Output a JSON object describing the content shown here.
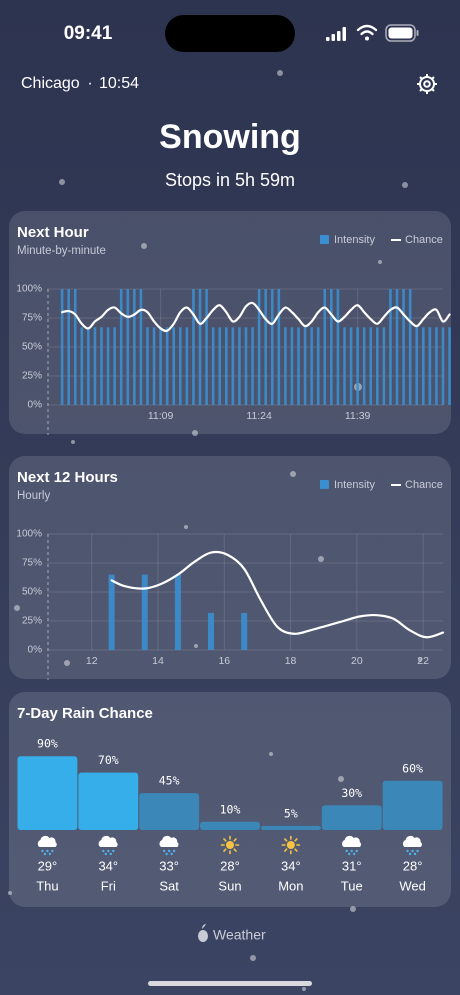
{
  "status_bar": {
    "time": "09:41"
  },
  "header": {
    "location": "Chicago",
    "separator": "·",
    "time": "10:54",
    "condition": "Snowing",
    "subtitle": "Stops in 5h 59m"
  },
  "chart_data": [
    {
      "type": "bar_line",
      "title": "Next Hour",
      "subtitle": "Minute-by-minute",
      "series": [
        {
          "name": "Intensity",
          "color": "#3a8fd0",
          "x": [
            0,
            1,
            2,
            3,
            4,
            5,
            6,
            7,
            8,
            9,
            10,
            11,
            12,
            13,
            14,
            15,
            16,
            17,
            18,
            19,
            20,
            21,
            22,
            23,
            24,
            25,
            26,
            27,
            28,
            29,
            30,
            31,
            32,
            33,
            34,
            35,
            36,
            37,
            38,
            39,
            40,
            41,
            42,
            43,
            44,
            45,
            46,
            47,
            48,
            49,
            50,
            51,
            52,
            53,
            54,
            55,
            56,
            57,
            58,
            59
          ],
          "values": [
            100,
            100,
            100,
            67,
            67,
            67,
            67,
            67,
            67,
            100,
            100,
            100,
            100,
            67,
            67,
            67,
            67,
            67,
            67,
            67,
            100,
            100,
            100,
            67,
            67,
            67,
            67,
            67,
            67,
            67,
            100,
            100,
            100,
            100,
            67,
            67,
            67,
            67,
            67,
            67,
            100,
            100,
            100,
            67,
            67,
            67,
            67,
            67,
            67,
            67,
            100,
            100,
            100,
            100,
            67,
            67,
            67,
            67,
            67,
            67
          ]
        },
        {
          "name": "Chance",
          "color": "#ffffff",
          "x": [
            0,
            1,
            2,
            3,
            4,
            5,
            6,
            7,
            8,
            9,
            10,
            11,
            12,
            13,
            14,
            15,
            16,
            17,
            18,
            19,
            20,
            21,
            22,
            23,
            24,
            25,
            26,
            27,
            28,
            29,
            30,
            31,
            32,
            33,
            34,
            35,
            36,
            37,
            38,
            39,
            40,
            41,
            42,
            43,
            44,
            45,
            46,
            47,
            48,
            49,
            50,
            51,
            52,
            53,
            54,
            55,
            56,
            57,
            58,
            59
          ],
          "values": [
            80,
            81,
            78,
            70,
            66,
            72,
            76,
            82,
            84,
            79,
            76,
            78,
            82,
            80,
            72,
            66,
            64,
            70,
            80,
            84,
            78,
            70,
            75,
            82,
            86,
            80,
            72,
            76,
            85,
            88,
            82,
            74,
            70,
            78,
            84,
            80,
            74,
            68,
            72,
            80,
            84,
            78,
            72,
            76,
            82,
            86,
            80,
            74,
            70,
            76,
            82,
            84,
            78,
            72,
            68,
            74,
            80,
            82,
            72,
            78
          ]
        }
      ],
      "xlim": [
        -2.3,
        58
      ],
      "xticks": [
        {
          "value": 15,
          "label": "11:09"
        },
        {
          "value": 30,
          "label": "11:24"
        },
        {
          "value": 45,
          "label": "11:39"
        }
      ],
      "ylim": [
        0,
        100
      ],
      "yticks": [
        {
          "value": 0,
          "label": "0%"
        },
        {
          "value": 25,
          "label": "25%"
        },
        {
          "value": 50,
          "label": "50%"
        },
        {
          "value": 75,
          "label": "75%"
        },
        {
          "value": 100,
          "label": "100%"
        }
      ],
      "grid": true
    },
    {
      "type": "bar_line",
      "title": "Next 12 Hours",
      "subtitle": "Hourly",
      "series": [
        {
          "name": "Intensity",
          "color": "#3a8fd0",
          "x": [
            12.6,
            13.6,
            14.6,
            15.6,
            16.6
          ],
          "values": [
            65,
            65,
            65,
            32,
            32
          ]
        },
        {
          "name": "Chance",
          "color": "#ffffff",
          "x": [
            12.6,
            13,
            13.6,
            14.1,
            14.6,
            15.1,
            15.6,
            16.1,
            16.6,
            17.1,
            17.6,
            18.1,
            18.6,
            19.1,
            19.6,
            20.1,
            20.6,
            21.1,
            21.6,
            22.1,
            22.6
          ],
          "values": [
            60,
            55,
            53,
            57,
            65,
            76,
            84,
            82,
            70,
            43,
            20,
            14,
            17,
            21,
            25,
            29,
            30,
            27,
            17,
            11,
            15
          ]
        }
      ],
      "xlim": [
        10.65,
        22.6
      ],
      "xticks": [
        12,
        14,
        16,
        18,
        20,
        22
      ],
      "ylim": [
        0,
        100
      ],
      "yticks": [
        {
          "value": 0,
          "label": "0%"
        },
        {
          "value": 25,
          "label": "25%"
        },
        {
          "value": 50,
          "label": "50%"
        },
        {
          "value": 75,
          "label": "75%"
        },
        {
          "value": 100,
          "label": "100%"
        }
      ],
      "grid": true
    },
    {
      "type": "bar",
      "title": "7-Day Rain Chance",
      "categories": [
        "Thu",
        "Fri",
        "Sat",
        "Sun",
        "Mon",
        "Tue",
        "Wed"
      ],
      "values": [
        90,
        70,
        45,
        10,
        5,
        30,
        60
      ],
      "value_labels": [
        "90%",
        "70%",
        "45%",
        "10%",
        "5%",
        "30%",
        "60%"
      ],
      "temps": [
        "29°",
        "34°",
        "33°",
        "28°",
        "34°",
        "31°",
        "28°"
      ],
      "conditions": [
        "snow",
        "snow",
        "snow",
        "sun",
        "sun",
        "snow",
        "snow"
      ],
      "colors": [
        "#35aee9",
        "#35aee9",
        "#3b87b8",
        "#3b87b8",
        "#3b87b8",
        "#3b87b8",
        "#3b87b8"
      ],
      "ylim": [
        0,
        100
      ]
    }
  ],
  "footer": {
    "brand": "Weather"
  }
}
